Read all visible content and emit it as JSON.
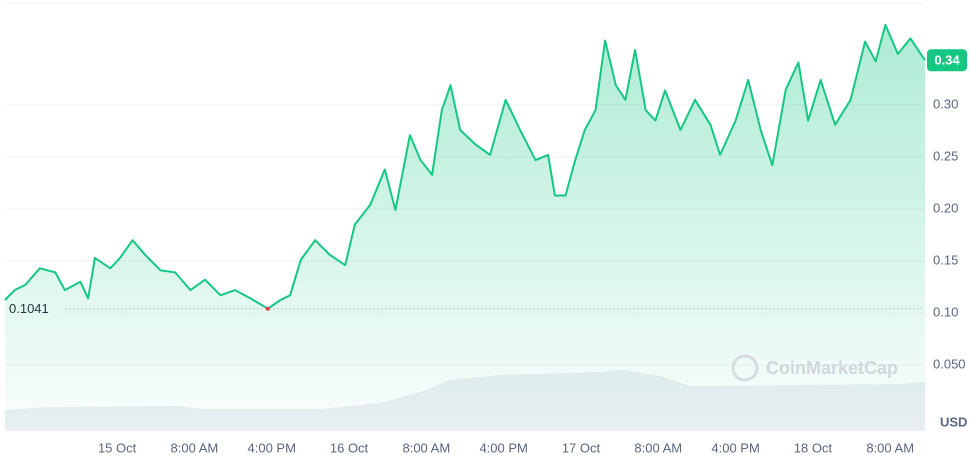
{
  "chart_data": {
    "type": "line",
    "x": [
      -11.6,
      -10.6,
      -9.5,
      -8.0,
      -6.4,
      -5.4,
      -3.8,
      -3.0,
      -2.3,
      -0.7,
      0.3,
      1.6,
      2.9,
      4.5,
      6.0,
      7.6,
      9.1,
      10.7,
      12.2,
      13.8,
      15.6,
      16.9,
      17.9,
      19.0,
      20.5,
      22.0,
      23.6,
      24.6,
      26.2,
      27.7,
      28.8,
      30.3,
      31.4,
      32.6,
      33.6,
      34.5,
      35.5,
      37.1,
      38.6,
      40.2,
      41.7,
      43.3,
      44.6,
      45.3,
      46.4,
      47.4,
      48.4,
      49.5,
      50.5,
      51.6,
      52.6,
      53.6,
      54.7,
      55.7,
      56.7,
      58.3,
      59.8,
      61.4,
      62.4,
      64.0,
      65.3,
      66.6,
      67.8,
      69.2,
      70.5,
      71.5,
      72.8,
      74.3,
      75.9,
      77.4,
      78.5,
      79.5,
      80.8,
      82.1,
      83.6
    ],
    "series": [
      {
        "color": "#16c784",
        "values": [
          0.1125,
          0.122,
          0.127,
          0.143,
          0.139,
          0.122,
          0.13,
          0.114,
          0.153,
          0.143,
          0.153,
          0.17,
          0.156,
          0.141,
          0.139,
          0.122,
          0.132,
          0.117,
          0.122,
          0.114,
          0.1041,
          0.1125,
          0.117,
          0.151,
          0.17,
          0.156,
          0.146,
          0.185,
          0.204,
          0.238,
          0.199,
          0.271,
          0.247,
          0.233,
          0.295,
          0.319,
          0.276,
          0.262,
          0.252,
          0.305,
          0.276,
          0.247,
          0.252,
          0.213,
          0.213,
          0.247,
          0.276,
          0.295,
          0.362,
          0.319,
          0.305,
          0.353,
          0.295,
          0.285,
          0.314,
          0.276,
          0.305,
          0.281,
          0.252,
          0.285,
          0.324,
          0.276,
          0.242,
          0.315,
          0.341,
          0.285,
          0.324,
          0.281,
          0.305,
          0.361,
          0.342,
          0.377,
          0.349,
          0.364,
          0.343
        ]
      }
    ],
    "xlim": [
      -11.6,
      83.6
    ],
    "xticks": [
      {
        "value": 0,
        "label": "15 Oct"
      },
      {
        "value": 8,
        "label": "8:00 AM"
      },
      {
        "value": 16,
        "label": "4:00 PM"
      },
      {
        "value": 24,
        "label": "16 Oct"
      },
      {
        "value": 32,
        "label": "8:00 AM"
      },
      {
        "value": 40,
        "label": "4:00 PM"
      },
      {
        "value": 48,
        "label": "17 Oct"
      },
      {
        "value": 56,
        "label": "8:00 AM"
      },
      {
        "value": 64,
        "label": "4:00 PM"
      },
      {
        "value": 72,
        "label": "18 Oct"
      },
      {
        "value": 80,
        "label": "8:00 AM"
      }
    ],
    "ylim": [
      0,
      0.4
    ],
    "yticks": [
      {
        "value": 0.05,
        "label": "0.050"
      },
      {
        "value": 0.1,
        "label": "0.10"
      },
      0.15,
      {
        "value": 0.2,
        "label": "0.20"
      },
      0.25,
      {
        "value": 0.3,
        "label": "0.30"
      }
    ],
    "baseline": 0.1041,
    "last_value_label": "0.34",
    "y_unit": "USD",
    "watermark": "CoinMarketCap",
    "grid": true
  }
}
